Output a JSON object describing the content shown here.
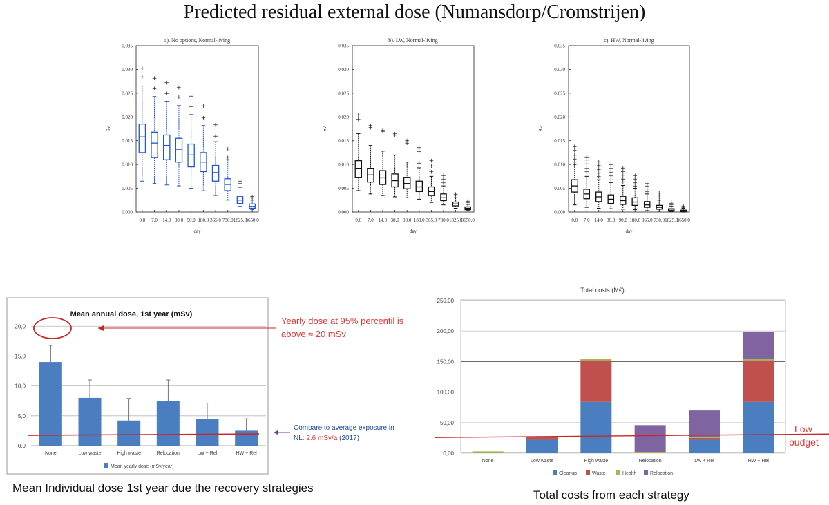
{
  "main_title": "Predicted residual external dose (Numansdorp/Cromstrijen)",
  "captions": {
    "left": "Mean Individual dose 1st year due the recovery strategies",
    "right": "Total costs from each strategy"
  },
  "colors": {
    "box_blue": "#1f55d6",
    "bar_blue": "#4a7ec0",
    "waste_red": "#c0504d",
    "health_green": "#9bbb59",
    "relocation_purple": "#8064a2",
    "ref_line_red": "#c62828",
    "annot_red": "#e53935",
    "annot_blue": "#1f4e9a",
    "arrow_purple": "#6a3d9a"
  },
  "chart_data": [
    {
      "id": "boxA",
      "type": "box",
      "title": "a). No options, Normal-living",
      "xlabel": "day",
      "ylabel": "Sv",
      "ylim": [
        0,
        0.035
      ],
      "yticks": [
        0.0,
        0.005,
        0.01,
        0.015,
        0.02,
        0.025,
        0.03,
        0.035
      ],
      "ytick_labels": [
        "0.000",
        "0.005",
        "0.010",
        "0.015",
        "0.020",
        "0.025",
        "0.030",
        "0.035"
      ],
      "categories": [
        "0.0",
        "7.0",
        "14.0",
        "30.0",
        "90.0",
        "180.0",
        "365.0",
        "730.0",
        "1825.0",
        "3650.0"
      ],
      "color": "blue",
      "boxes": [
        {
          "low": 0.0065,
          "q1": 0.0125,
          "med": 0.0158,
          "q3": 0.0185,
          "high": 0.0265,
          "fliers": [
            0.0285,
            0.0303
          ]
        },
        {
          "low": 0.006,
          "q1": 0.0115,
          "med": 0.0145,
          "q3": 0.0168,
          "high": 0.0243,
          "fliers": [
            0.026,
            0.0282
          ]
        },
        {
          "low": 0.0057,
          "q1": 0.011,
          "med": 0.014,
          "q3": 0.0162,
          "high": 0.0233,
          "fliers": [
            0.025,
            0.0272
          ]
        },
        {
          "low": 0.0055,
          "q1": 0.0105,
          "med": 0.0132,
          "q3": 0.0155,
          "high": 0.0224,
          "fliers": [
            0.0242,
            0.0262
          ]
        },
        {
          "low": 0.005,
          "q1": 0.0095,
          "med": 0.012,
          "q3": 0.0143,
          "high": 0.0205,
          "fliers": [
            0.0222,
            0.0244
          ]
        },
        {
          "low": 0.0045,
          "q1": 0.0085,
          "med": 0.0105,
          "q3": 0.0125,
          "high": 0.0182,
          "fliers": [
            0.0198,
            0.0224
          ]
        },
        {
          "low": 0.0035,
          "q1": 0.0065,
          "med": 0.0083,
          "q3": 0.0098,
          "high": 0.0148,
          "fliers": [
            0.016,
            0.0184
          ]
        },
        {
          "low": 0.0025,
          "q1": 0.0045,
          "med": 0.0058,
          "q3": 0.007,
          "high": 0.011,
          "fliers": [
            0.0115,
            0.0133
          ]
        },
        {
          "low": 0.0012,
          "q1": 0.0018,
          "med": 0.0025,
          "q3": 0.0033,
          "high": 0.0052,
          "fliers": [
            0.006,
            0.0065
          ]
        },
        {
          "low": 0.0005,
          "q1": 0.0008,
          "med": 0.0012,
          "q3": 0.0017,
          "high": 0.0025,
          "fliers": [
            0.003,
            0.0033
          ]
        }
      ]
    },
    {
      "id": "boxB",
      "type": "box",
      "title": "b). LW, Normal-living",
      "xlabel": "day",
      "ylabel": "Sv",
      "ylim": [
        0,
        0.035
      ],
      "yticks": [
        0.0,
        0.005,
        0.01,
        0.015,
        0.02,
        0.025,
        0.03,
        0.035
      ],
      "ytick_labels": [
        "0.000",
        "0.005",
        "0.010",
        "0.015",
        "0.020",
        "0.025",
        "0.030",
        "0.035"
      ],
      "categories": [
        "0.0",
        "7.0",
        "14.0",
        "30.0",
        "90.0",
        "180.0",
        "365.0",
        "730.0",
        "1825.0",
        "3650.0"
      ],
      "color": "black",
      "boxes": [
        {
          "low": 0.0045,
          "q1": 0.0073,
          "med": 0.0092,
          "q3": 0.0108,
          "high": 0.0165,
          "fliers": [
            0.0195,
            0.0205
          ]
        },
        {
          "low": 0.0038,
          "q1": 0.0063,
          "med": 0.0078,
          "q3": 0.0092,
          "high": 0.014,
          "fliers": [
            0.0178,
            0.0182
          ]
        },
        {
          "low": 0.0035,
          "q1": 0.0058,
          "med": 0.0072,
          "q3": 0.0087,
          "high": 0.0128,
          "fliers": [
            0.017,
            0.0173
          ]
        },
        {
          "low": 0.0032,
          "q1": 0.0053,
          "med": 0.0066,
          "q3": 0.008,
          "high": 0.012,
          "fliers": [
            0.0162,
            0.0165
          ]
        },
        {
          "low": 0.003,
          "q1": 0.0049,
          "med": 0.006,
          "q3": 0.0073,
          "high": 0.0105,
          "fliers": [
            0.0145,
            0.015
          ]
        },
        {
          "low": 0.0027,
          "q1": 0.0043,
          "med": 0.0053,
          "q3": 0.0065,
          "high": 0.0093,
          "fliers": [
            0.0103,
            0.0128,
            0.0136
          ]
        },
        {
          "low": 0.002,
          "q1": 0.0035,
          "med": 0.0043,
          "q3": 0.0053,
          "high": 0.0075,
          "fliers": [
            0.0085,
            0.0097,
            0.0108
          ]
        },
        {
          "low": 0.0015,
          "q1": 0.0024,
          "med": 0.003,
          "q3": 0.0038,
          "high": 0.0055,
          "fliers": [
            0.0062,
            0.007,
            0.0077
          ]
        },
        {
          "low": 0.0008,
          "q1": 0.0013,
          "med": 0.0017,
          "q3": 0.0021,
          "high": 0.003,
          "fliers": [
            0.0035,
            0.0038
          ]
        },
        {
          "low": 0.0003,
          "q1": 0.0005,
          "med": 0.0008,
          "q3": 0.0011,
          "high": 0.0016,
          "fliers": [
            0.002,
            0.0023
          ]
        }
      ]
    },
    {
      "id": "boxC",
      "type": "box",
      "title": "c). HW, Normal-living",
      "xlabel": "day",
      "ylabel": "Sv",
      "ylim": [
        0,
        0.035
      ],
      "yticks": [
        0.0,
        0.005,
        0.01,
        0.015,
        0.02,
        0.025,
        0.03,
        0.035
      ],
      "ytick_labels": [
        "0.000",
        "0.005",
        "0.010",
        "0.015",
        "0.020",
        "0.025",
        "0.030",
        "0.035"
      ],
      "categories": [
        "0.0",
        "7.0",
        "14.0",
        "30.0",
        "90.0",
        "180.0",
        "365.0",
        "730.0",
        "1825.0",
        "3650.0"
      ],
      "color": "black",
      "boxes": [
        {
          "low": 0.0015,
          "q1": 0.0042,
          "med": 0.0055,
          "q3": 0.0068,
          "high": 0.01,
          "fliers": [
            0.0105,
            0.0112,
            0.012,
            0.013,
            0.0138
          ]
        },
        {
          "low": 0.001,
          "q1": 0.0028,
          "med": 0.0038,
          "q3": 0.0048,
          "high": 0.0075,
          "fliers": [
            0.0085,
            0.0092,
            0.0102,
            0.011,
            0.0116
          ]
        },
        {
          "low": 0.0008,
          "q1": 0.0022,
          "med": 0.0032,
          "q3": 0.0042,
          "high": 0.0068,
          "fliers": [
            0.0075,
            0.0082,
            0.009,
            0.0098,
            0.0106
          ]
        },
        {
          "low": 0.0007,
          "q1": 0.0018,
          "med": 0.0027,
          "q3": 0.0036,
          "high": 0.0062,
          "fliers": [
            0.0068,
            0.0076,
            0.0084,
            0.0092,
            0.01
          ]
        },
        {
          "low": 0.0006,
          "q1": 0.0016,
          "med": 0.0024,
          "q3": 0.0033,
          "high": 0.0056,
          "fliers": [
            0.0063,
            0.007,
            0.0078,
            0.0086,
            0.0093
          ]
        },
        {
          "low": 0.0005,
          "q1": 0.0014,
          "med": 0.0021,
          "q3": 0.003,
          "high": 0.005,
          "fliers": [
            0.0055,
            0.0062,
            0.007,
            0.0077
          ]
        },
        {
          "low": 0.0003,
          "q1": 0.001,
          "med": 0.0015,
          "q3": 0.0022,
          "high": 0.0038,
          "fliers": [
            0.0043,
            0.0049,
            0.0055,
            0.006
          ]
        },
        {
          "low": 0.0002,
          "q1": 0.0006,
          "med": 0.001,
          "q3": 0.0014,
          "high": 0.0025,
          "fliers": [
            0.003,
            0.0035,
            0.004
          ]
        },
        {
          "low": 0.0001,
          "q1": 0.0002,
          "med": 0.0004,
          "q3": 0.0007,
          "high": 0.0012,
          "fliers": [
            0.0015,
            0.0018,
            0.0021
          ]
        },
        {
          "low": 0.0,
          "q1": 0.0001,
          "med": 0.0002,
          "q3": 0.0004,
          "high": 0.0008,
          "fliers": [
            0.001,
            0.0013
          ]
        }
      ]
    },
    {
      "id": "doseBar",
      "type": "bar",
      "title": "Mean annual dose, 1st year (mSv)",
      "categories": [
        "None",
        "Low waste",
        "High waste",
        "Relocation",
        "LW + Rel",
        "HW + Rel"
      ],
      "series": [
        {
          "name": "Mean yearly dose (mSv/year)",
          "values": [
            14.0,
            8.0,
            4.2,
            7.5,
            4.4,
            2.5
          ]
        }
      ],
      "errors_upper": [
        16.8,
        11.0,
        7.9,
        11.0,
        7.1,
        4.5
      ],
      "reference_line": 1.85,
      "ylim": [
        0,
        22
      ],
      "yticks": [
        0,
        5,
        10,
        15,
        20
      ],
      "ytick_labels": [
        "0,0",
        "5,0",
        "10,0",
        "15,0",
        "20,0"
      ],
      "annotation_red": [
        "Yearly dose at 95% percentil is",
        "above ≈ 20 mSv"
      ],
      "annotation_blue_line1": "Compare to average exposure in",
      "annotation_blue_line2_prefix": "NL: ",
      "annotation_blue_line2_value": "2.6 mSv/a",
      "annotation_blue_line2_suffix": " (2017)"
    },
    {
      "id": "costBar",
      "type": "bar",
      "stacked": true,
      "title": "Total costs (M€)",
      "categories": [
        "None",
        "Low waste",
        "High waste",
        "Relocation",
        "LW + Rel",
        "HW + Rel"
      ],
      "series": [
        {
          "name": "Cleanup",
          "values": [
            0,
            22,
            84,
            0,
            22,
            84
          ]
        },
        {
          "name": "Waste",
          "values": [
            0,
            4,
            68,
            0,
            3,
            68
          ]
        },
        {
          "name": "Health",
          "values": [
            3,
            1,
            2,
            2,
            1,
            2
          ]
        },
        {
          "name": "Relocation",
          "values": [
            0,
            0,
            0,
            44,
            44,
            44
          ]
        }
      ],
      "reference_line": 28,
      "ylim": [
        0,
        250
      ],
      "yticks": [
        0,
        50,
        100,
        150,
        200,
        250
      ],
      "ytick_labels": [
        "0,00",
        "50,00",
        "100,00",
        "150,00",
        "200,00",
        "250,00"
      ],
      "annotation": [
        "Low",
        "budget"
      ]
    }
  ]
}
